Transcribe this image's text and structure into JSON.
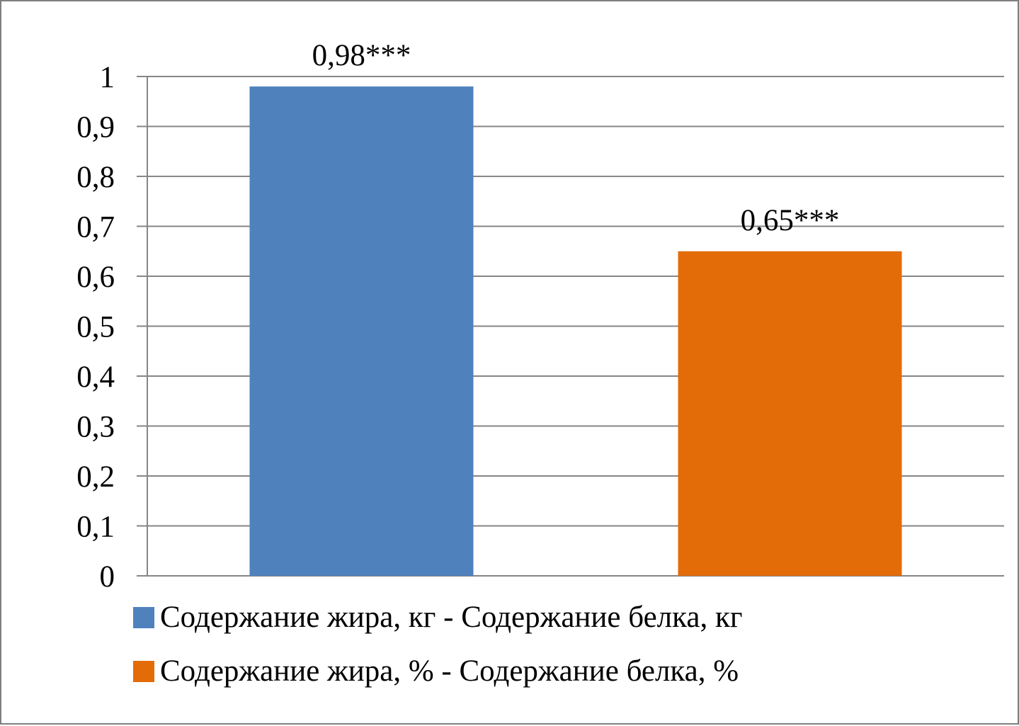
{
  "chart_data": {
    "type": "bar",
    "categories": [
      "Содержание жира, кг - Содержание белка, кг",
      "Содержание жира, % - Содержание белка, %"
    ],
    "values": [
      0.98,
      0.65
    ],
    "data_labels": [
      "0,98***",
      "0,65***"
    ],
    "colors": [
      "#4f81bd",
      "#e36c09"
    ],
    "ylim": [
      0,
      1
    ],
    "y_ticks": [
      0,
      0.1,
      0.2,
      0.3,
      0.4,
      0.5,
      0.6,
      0.7,
      0.8,
      0.9,
      1
    ],
    "y_tick_labels": [
      "0",
      "0,1",
      "0,2",
      "0,3",
      "0,4",
      "0,5",
      "0,6",
      "0,7",
      "0,8",
      "0,9",
      "1"
    ],
    "grid": true,
    "legend_position": "bottom-left",
    "legend": [
      "Содержание жира, кг - Содержание белка, кг",
      "Содержание жира, % - Содержание белка, %"
    ]
  }
}
